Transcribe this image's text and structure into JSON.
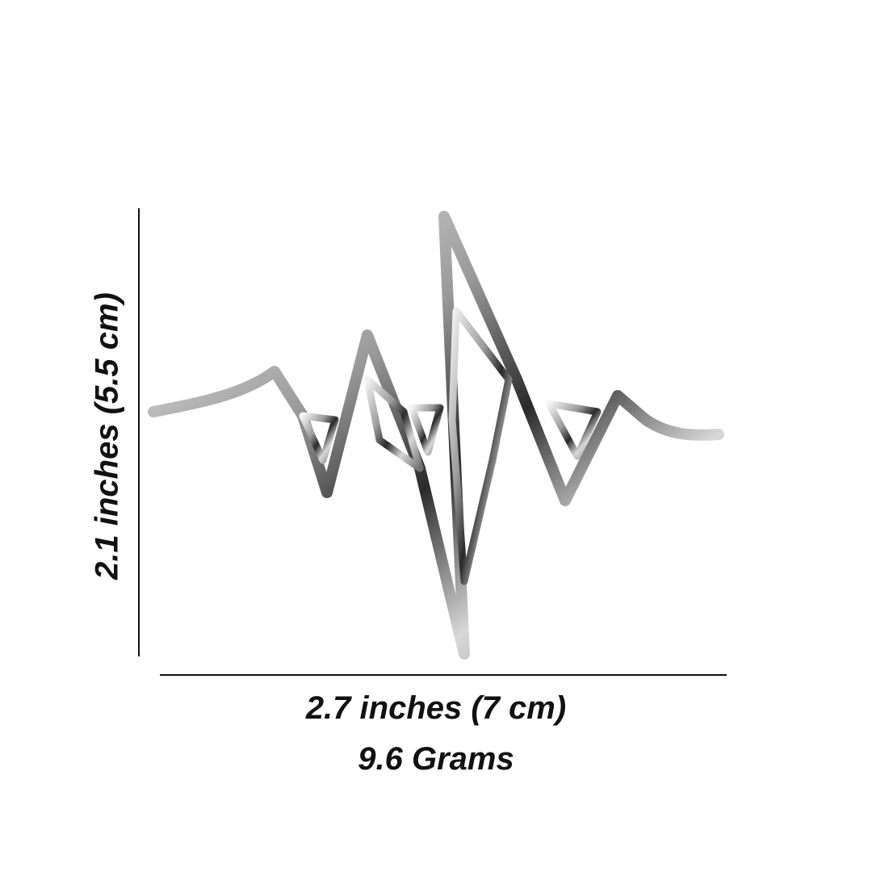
{
  "dimensions": {
    "height_label": "2.1 inches (5.5 cm)",
    "width_label": "2.7 inches (7 cm)",
    "weight_label": "9.6 Grams"
  },
  "product": {
    "icon": "heartbeat-pendant",
    "metal_color": "#c8c8c8"
  }
}
